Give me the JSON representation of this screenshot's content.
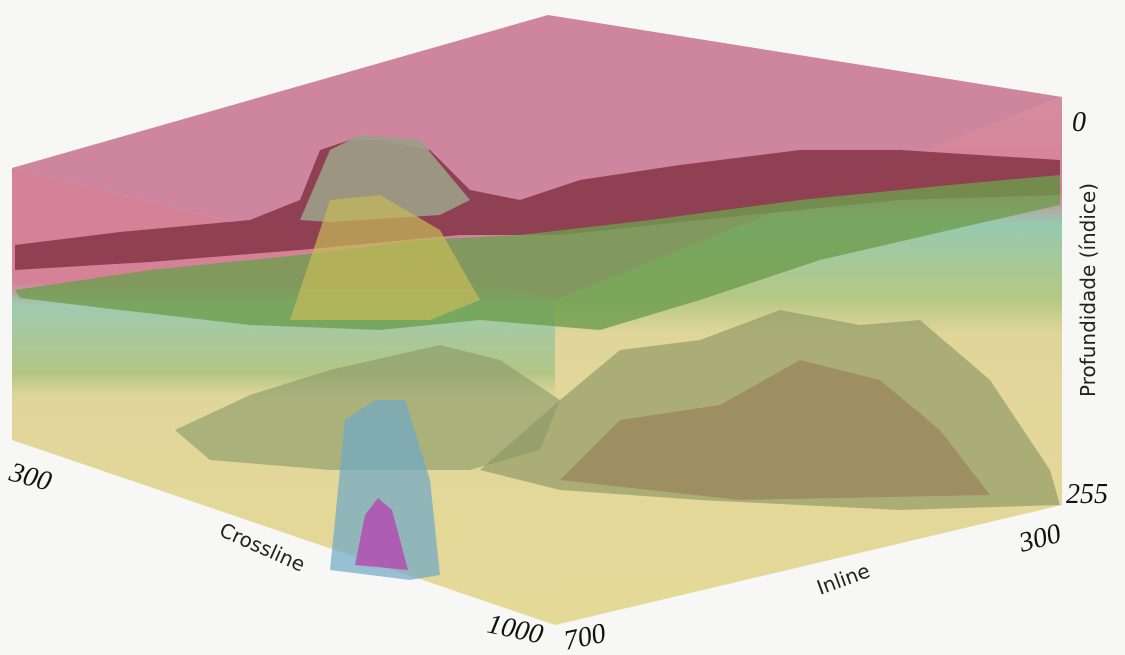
{
  "axes": {
    "depth": {
      "label": "Profundidade (índice)",
      "ticks": [
        0,
        255
      ]
    },
    "crossline": {
      "label": "Crossline",
      "ticks": [
        300,
        1000
      ]
    },
    "inline": {
      "label": "Inline",
      "ticks": [
        700,
        300
      ]
    }
  }
}
